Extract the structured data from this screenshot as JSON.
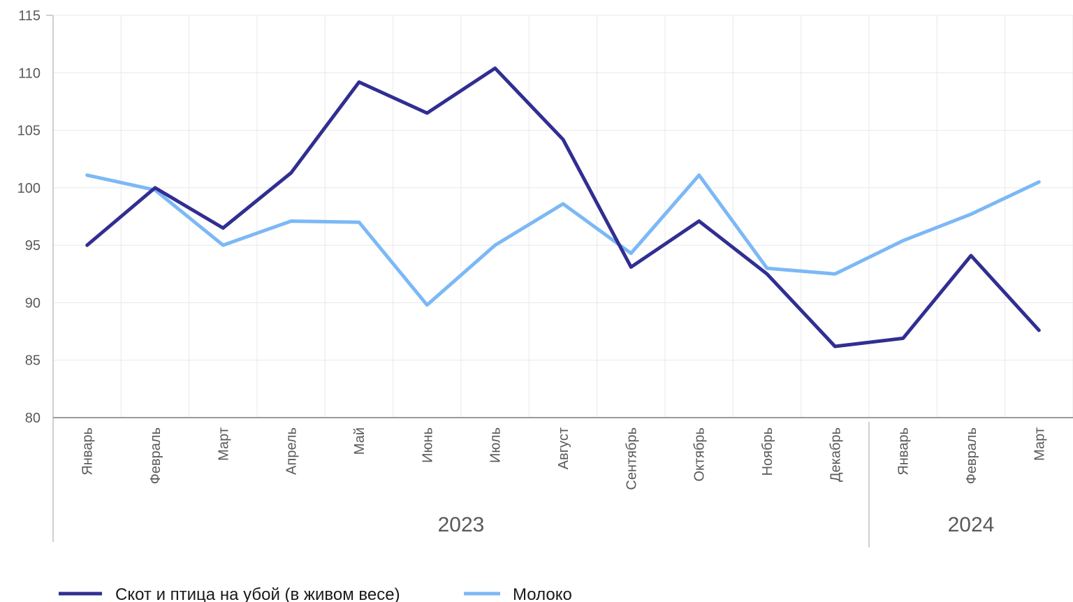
{
  "chart_data": {
    "type": "line",
    "categories": [
      "Январь",
      "Февраль",
      "Март",
      "Апрель",
      "Май",
      "Июнь",
      "Июль",
      "Август",
      "Сентябрь",
      "Октябрь",
      "Ноябрь",
      "Декабрь",
      "Январь",
      "Февраль",
      "Март"
    ],
    "groups": [
      {
        "label": "2023",
        "count": 12
      },
      {
        "label": "2024",
        "count": 3
      }
    ],
    "series": [
      {
        "name": "Скот и птица на убой (в живом весе)",
        "color": "#312e92",
        "values": [
          95.0,
          100.0,
          96.5,
          101.3,
          109.2,
          106.5,
          110.4,
          104.2,
          93.1,
          97.1,
          92.5,
          86.2,
          86.9,
          94.1,
          87.6
        ]
      },
      {
        "name": "Молоко",
        "color": "#7cb8f5",
        "values": [
          101.1,
          99.8,
          95.0,
          97.1,
          97.0,
          89.8,
          95.0,
          98.6,
          94.3,
          101.1,
          93.0,
          92.5,
          95.4,
          97.7,
          100.5
        ]
      }
    ],
    "ylim": [
      80,
      115
    ],
    "yticks": [
      80,
      85,
      90,
      95,
      100,
      105,
      110,
      115
    ],
    "grid": true,
    "legend": "bottom-left"
  }
}
